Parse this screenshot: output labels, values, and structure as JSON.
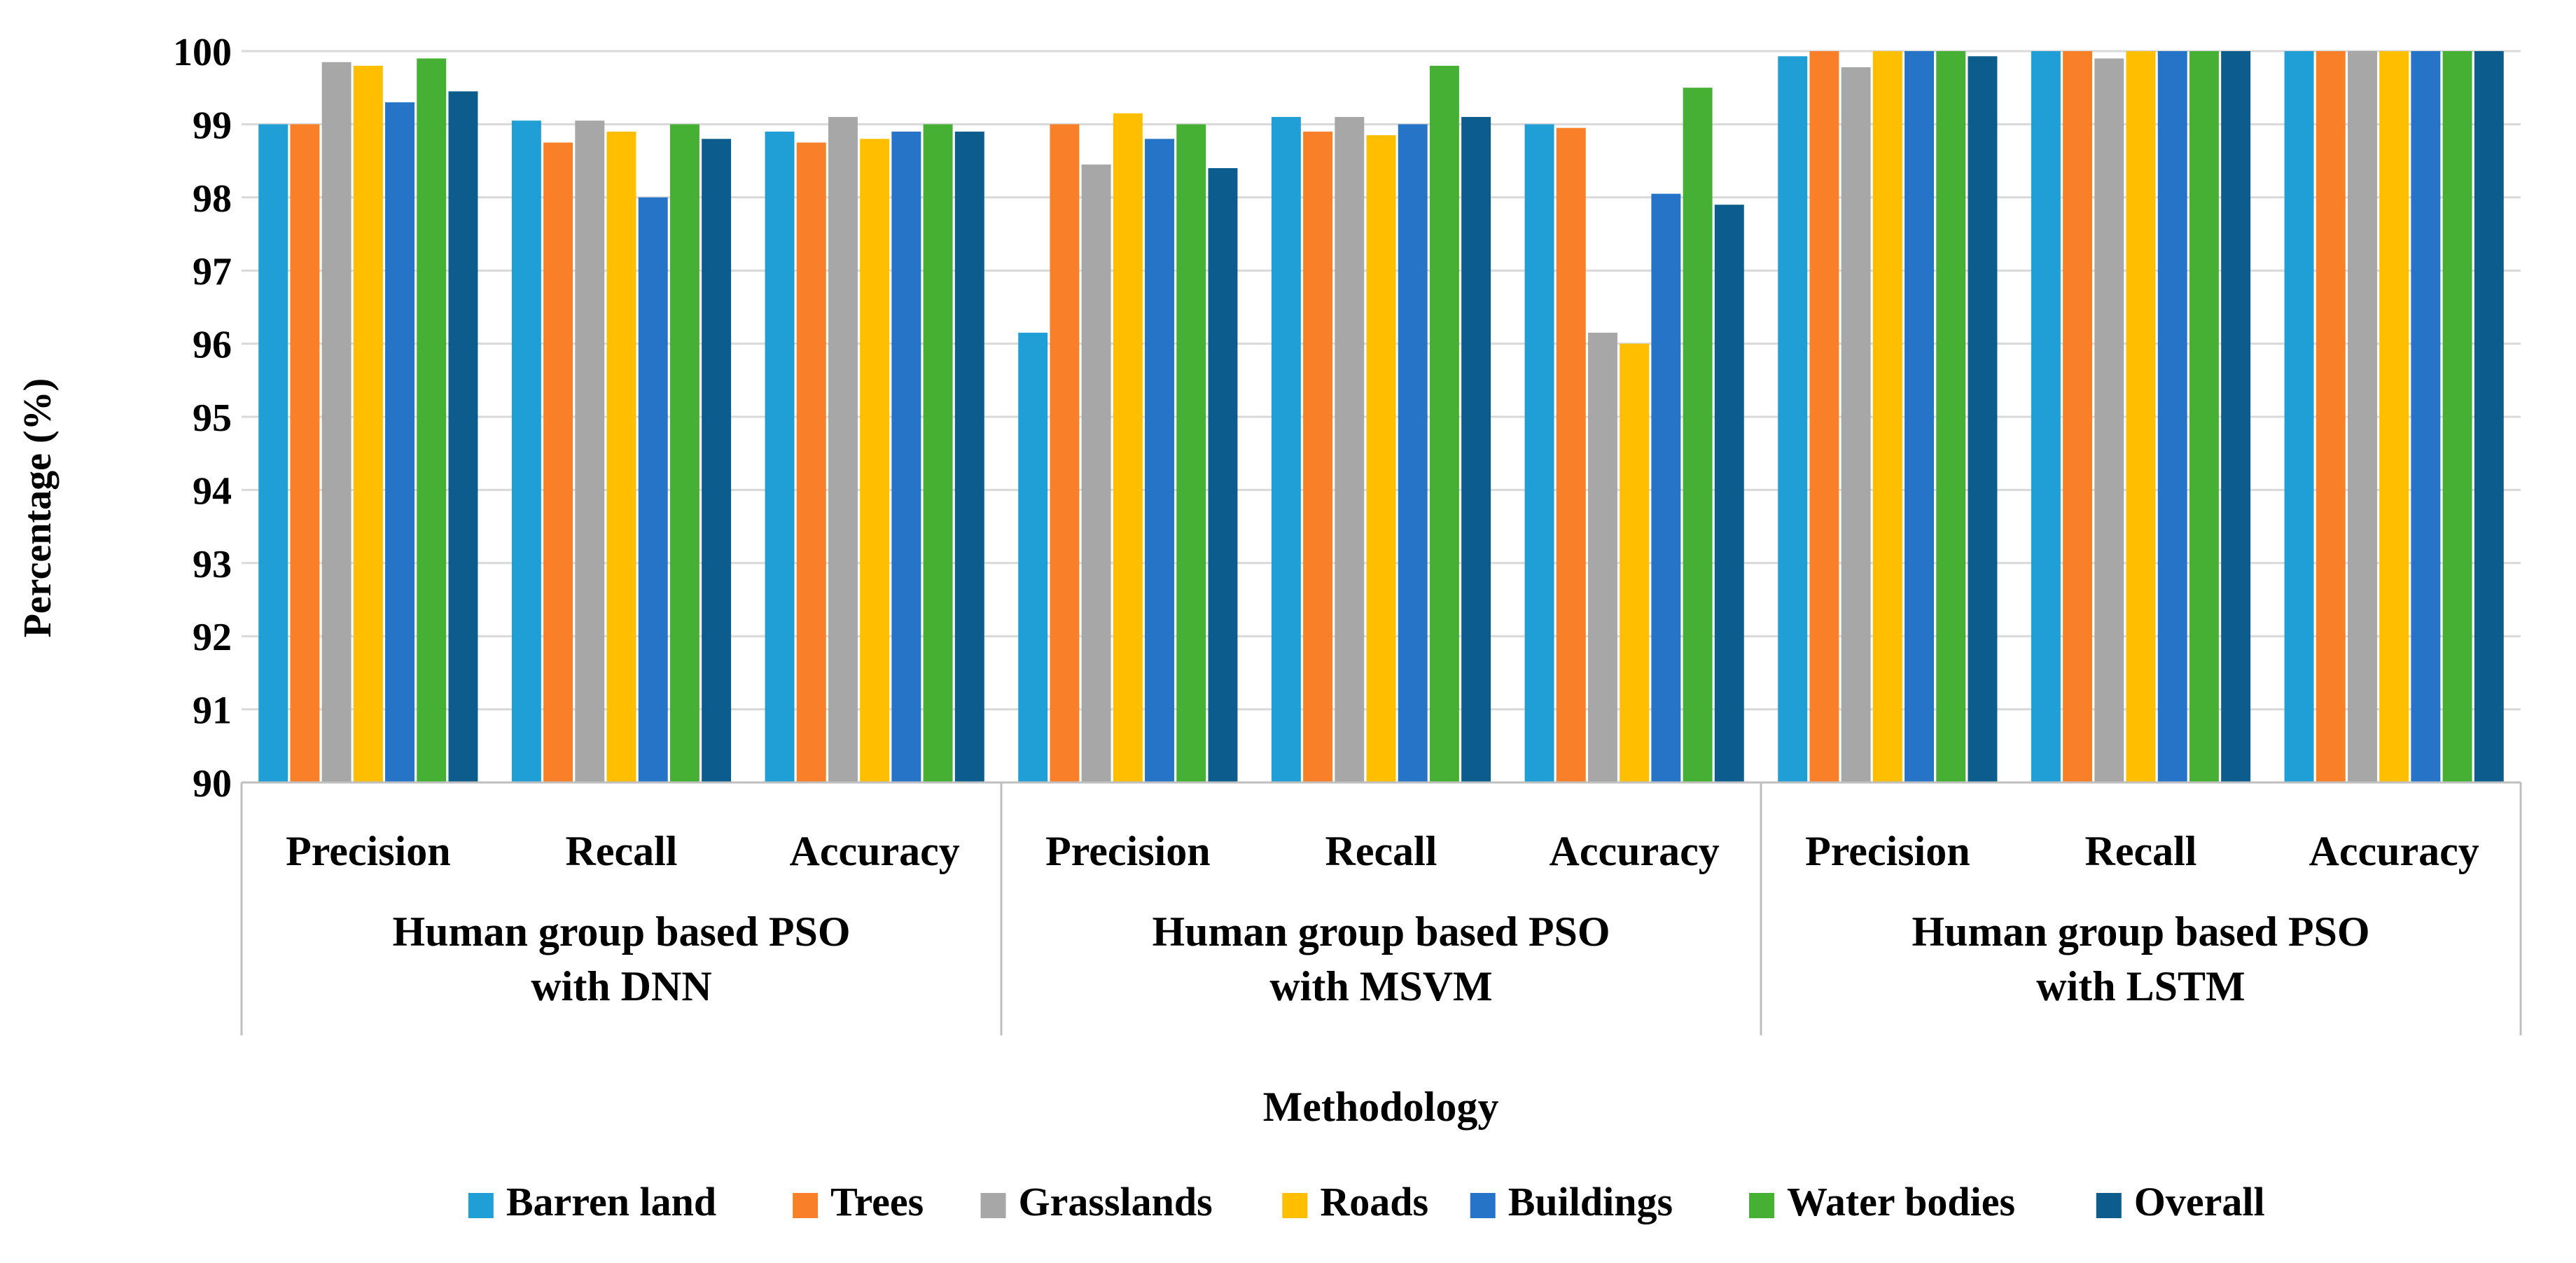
{
  "chart_data": {
    "type": "bar",
    "title": "",
    "xlabel": "Methodology",
    "ylabel": "Percentage (%)",
    "ylim": [
      90,
      100
    ],
    "yticks": [
      90,
      91,
      92,
      93,
      94,
      95,
      96,
      97,
      98,
      99,
      100
    ],
    "grid": true,
    "legend_position": "bottom",
    "groups": [
      {
        "name": "Human group based PSO with DNN",
        "lines": [
          "Human group based PSO",
          "with DNN"
        ]
      },
      {
        "name": "Human group based PSO with MSVM",
        "lines": [
          "Human group based PSO",
          "with MSVM"
        ]
      },
      {
        "name": "Human group based PSO with LSTM",
        "lines": [
          "Human group based PSO",
          "with LSTM"
        ]
      }
    ],
    "categories": [
      "Precision",
      "Recall",
      "Accuracy",
      "Precision",
      "Recall",
      "Accuracy",
      "Precision",
      "Recall",
      "Accuracy"
    ],
    "series": [
      {
        "name": "Barren land",
        "color": "#1F9FD6",
        "values": [
          99.0,
          99.05,
          98.9,
          96.15,
          99.1,
          99.0,
          99.93,
          100.0,
          100.0
        ]
      },
      {
        "name": "Trees",
        "color": "#F98028",
        "values": [
          99.0,
          98.75,
          98.75,
          99.0,
          98.9,
          98.95,
          100.0,
          100.0,
          100.0
        ]
      },
      {
        "name": "Grasslands",
        "color": "#A7A7A7",
        "values": [
          99.85,
          99.05,
          99.1,
          98.45,
          99.1,
          96.15,
          99.78,
          99.9,
          100.0
        ]
      },
      {
        "name": "Roads",
        "color": "#FFBE00",
        "values": [
          99.8,
          98.9,
          98.8,
          99.15,
          98.85,
          96.0,
          100.0,
          100.0,
          100.0
        ]
      },
      {
        "name": "Buildings",
        "color": "#2574C8",
        "values": [
          99.3,
          98.0,
          98.9,
          98.8,
          99.0,
          98.05,
          100.0,
          100.0,
          100.0
        ]
      },
      {
        "name": "Water bodies",
        "color": "#45B034",
        "values": [
          99.9,
          99.0,
          99.0,
          99.0,
          99.8,
          99.5,
          100.0,
          100.0,
          100.0
        ]
      },
      {
        "name": "Overall",
        "color": "#0C5D8D",
        "values": [
          99.45,
          98.8,
          98.9,
          98.4,
          99.1,
          97.9,
          99.93,
          100.0,
          100.0
        ]
      }
    ]
  }
}
